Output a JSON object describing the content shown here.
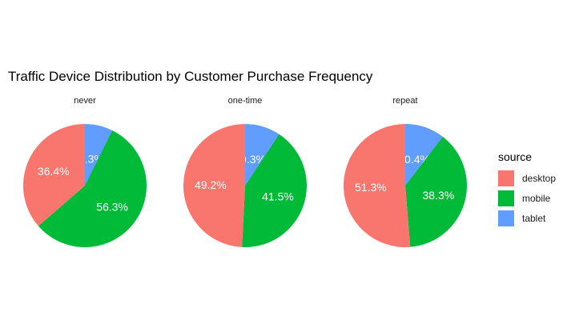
{
  "chart_data": {
    "type": "pie",
    "title": "Traffic Device Distribution by Customer Purchase Frequency",
    "legend": {
      "title": "source",
      "position": "right"
    },
    "series_names": [
      "desktop",
      "mobile",
      "tablet"
    ],
    "colors": {
      "desktop": "#F8766D",
      "mobile": "#00BA38",
      "tablet": "#619CFF"
    },
    "panels": [
      {
        "label": "never",
        "values": {
          "desktop": 36.4,
          "mobile": 56.3,
          "tablet": 7.3
        },
        "labels": {
          "desktop": "36.4%",
          "mobile": "56.3%",
          "tablet": "7.3%"
        }
      },
      {
        "label": "one-time",
        "values": {
          "desktop": 49.2,
          "mobile": 41.5,
          "tablet": 9.3
        },
        "labels": {
          "desktop": "49.2%",
          "mobile": "41.5%",
          "tablet": "9.3%"
        }
      },
      {
        "label": "repeat",
        "values": {
          "desktop": 51.3,
          "mobile": 38.3,
          "tablet": 10.4
        },
        "labels": {
          "desktop": "51.3%",
          "mobile": "38.3%",
          "tablet": "10.4%"
        }
      }
    ]
  }
}
